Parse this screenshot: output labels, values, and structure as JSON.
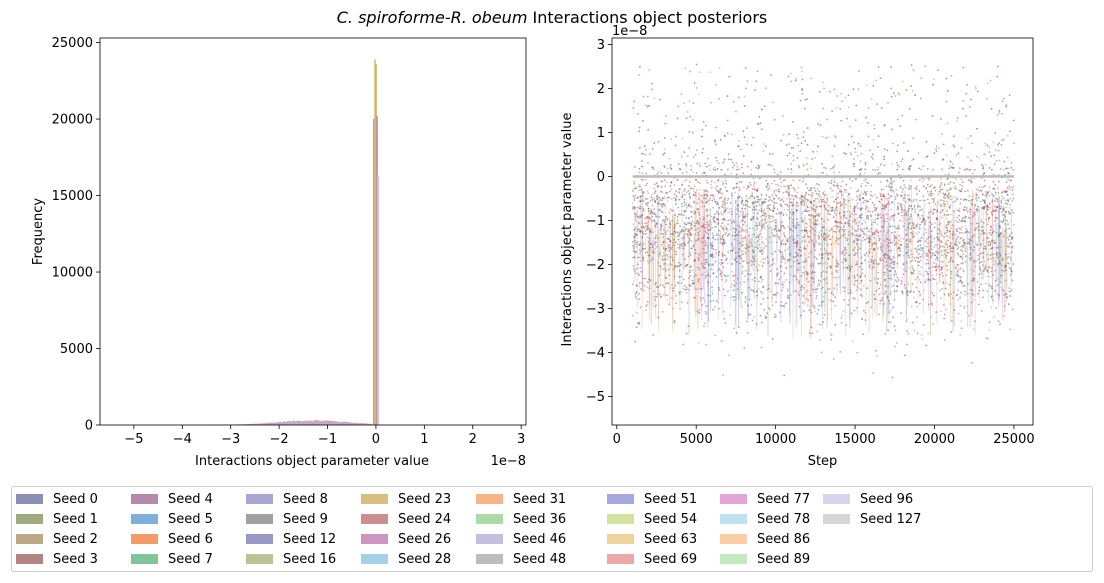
{
  "figure": {
    "title_italic": "C. spiroforme-R. obeum",
    "title_rest": " Interactions object posteriors"
  },
  "chart_data": [
    {
      "type": "histogram",
      "xlabel": "Interactions object parameter value",
      "ylabel": "Frequency",
      "x_offset_label": "1e−8",
      "xlim": [
        -5.7,
        3.1
      ],
      "ylim": [
        0,
        25300
      ],
      "xticks": [
        -5,
        -4,
        -3,
        -2,
        -1,
        0,
        1,
        2,
        3
      ],
      "xtick_labels": [
        "−5",
        "−4",
        "−3",
        "−2",
        "−1",
        "0",
        "1",
        "2",
        "3"
      ],
      "yticks": [
        0,
        5000,
        10000,
        15000,
        20000,
        25000
      ],
      "ytick_labels": [
        "0",
        "5000",
        "10000",
        "15000",
        "20000",
        "25000"
      ],
      "spike_bins": [
        {
          "x0": -0.06,
          "x1": -0.02,
          "value": 20000,
          "color": "#e07060"
        },
        {
          "x0": -0.04,
          "x1": 0.0,
          "value": 23900,
          "color": "#e0c080"
        },
        {
          "x0": -0.02,
          "x1": 0.02,
          "value": 23600,
          "color": "#d4b060"
        },
        {
          "x0": 0.0,
          "x1": 0.04,
          "value": 20200,
          "color": "#b09090"
        },
        {
          "x0": 0.02,
          "x1": 0.07,
          "value": 16300,
          "color": "#c8c0e0"
        }
      ],
      "hump": {
        "center": -1.3,
        "width": 0.75,
        "peak": 300,
        "min": -3.6,
        "max": -0.1
      }
    },
    {
      "type": "scatter",
      "xlabel": "Step",
      "ylabel": "Interactions object parameter value",
      "y_offset_label": "1e−8",
      "xlim": [
        -300,
        26200
      ],
      "ylim": [
        -5.65,
        3.15
      ],
      "xticks": [
        0,
        5000,
        10000,
        15000,
        20000,
        25000
      ],
      "xtick_labels": [
        "0",
        "5000",
        "10000",
        "15000",
        "20000",
        "25000"
      ],
      "yticks": [
        -5,
        -4,
        -3,
        -2,
        -1,
        0,
        1,
        2,
        3
      ],
      "ytick_labels": [
        "−5",
        "−4",
        "−3",
        "−2",
        "−1",
        "0",
        "1",
        "2",
        "3"
      ],
      "step_range": [
        1000,
        25000
      ],
      "bulk_range": [
        -4.5,
        0.2
      ],
      "upper_range": [
        0.2,
        2.7
      ],
      "zero_line": {
        "y": 0,
        "color": "#bbbbbb"
      }
    }
  ],
  "legend": {
    "items": [
      {
        "label": "Seed 0",
        "color": "#8c8fb5"
      },
      {
        "label": "Seed 1",
        "color": "#9faa80"
      },
      {
        "label": "Seed 2",
        "color": "#bba886"
      },
      {
        "label": "Seed 3",
        "color": "#b48484"
      },
      {
        "label": "Seed 4",
        "color": "#b48aa8"
      },
      {
        "label": "Seed 5",
        "color": "#7fb0dc"
      },
      {
        "label": "Seed 6",
        "color": "#f29a68"
      },
      {
        "label": "Seed 7",
        "color": "#80c69a"
      },
      {
        "label": "Seed 8",
        "color": "#aaa6d2"
      },
      {
        "label": "Seed 9",
        "color": "#a0a0a0"
      },
      {
        "label": "Seed 12",
        "color": "#9897c8"
      },
      {
        "label": "Seed 16",
        "color": "#b8c494"
      },
      {
        "label": "Seed 23",
        "color": "#d9be82"
      },
      {
        "label": "Seed 24",
        "color": "#cc8e8c"
      },
      {
        "label": "Seed 26",
        "color": "#cc96c0"
      },
      {
        "label": "Seed 28",
        "color": "#a4d0e8"
      },
      {
        "label": "Seed 31",
        "color": "#f8b486"
      },
      {
        "label": "Seed 36",
        "color": "#acdaa8"
      },
      {
        "label": "Seed 46",
        "color": "#c4bee0"
      },
      {
        "label": "Seed 48",
        "color": "#bdbdbd"
      },
      {
        "label": "Seed 51",
        "color": "#a6a8e0"
      },
      {
        "label": "Seed 54",
        "color": "#d4e2a0"
      },
      {
        "label": "Seed 63",
        "color": "#eed49a"
      },
      {
        "label": "Seed 69",
        "color": "#eaa8a8"
      },
      {
        "label": "Seed 77",
        "color": "#e4a6d8"
      },
      {
        "label": "Seed 78",
        "color": "#c0e0ee"
      },
      {
        "label": "Seed 86",
        "color": "#fccca4"
      },
      {
        "label": "Seed 89",
        "color": "#c4e8c0"
      },
      {
        "label": "Seed 96",
        "color": "#d6d4ee"
      },
      {
        "label": "Seed 127",
        "color": "#d6d6d6"
      }
    ]
  }
}
